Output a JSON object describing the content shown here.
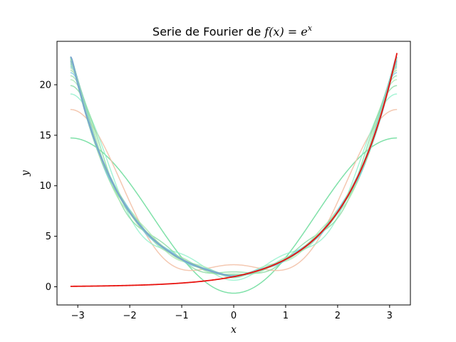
{
  "chart_data": {
    "type": "line",
    "title_prefix": "Serie de Fourier de ",
    "title_math": "f(x) = e",
    "title_exp": "x",
    "xlabel": "x",
    "ylabel": "y",
    "xlim": [
      -3.4,
      3.4
    ],
    "ylim": [
      -1.8,
      24.3
    ],
    "xticks": [
      -3,
      -2,
      -1,
      0,
      1,
      2,
      3
    ],
    "yticks": [
      0,
      5,
      10,
      15,
      20
    ],
    "grid": false,
    "function_color": "#e8130f",
    "partial_sum_terms": [
      1,
      2,
      3,
      4,
      5,
      6,
      7,
      8,
      9,
      10,
      11,
      12,
      13,
      14,
      15,
      16,
      17,
      18,
      19,
      20,
      21,
      22,
      23,
      24,
      25,
      26,
      27,
      28,
      29,
      30,
      31,
      32,
      33,
      34,
      35,
      36,
      37,
      38,
      39,
      40
    ],
    "partial_sum_colors": [
      "#72dea0",
      "#f3c2a8",
      "#8af0c8",
      "#7fd89a",
      "#a8e8b0",
      "#94e0a6",
      "#6fc7e0",
      "#9ad8a0",
      "#b9e6ad",
      "#7bc0d8",
      "#88d4a4",
      "#a2e0b4",
      "#6fb7de",
      "#90d0aa",
      "#9fd8ba",
      "#7ab0d8",
      "#8cc8b0",
      "#7aa8d6",
      "#86bdd0",
      "#7399d2"
    ]
  }
}
